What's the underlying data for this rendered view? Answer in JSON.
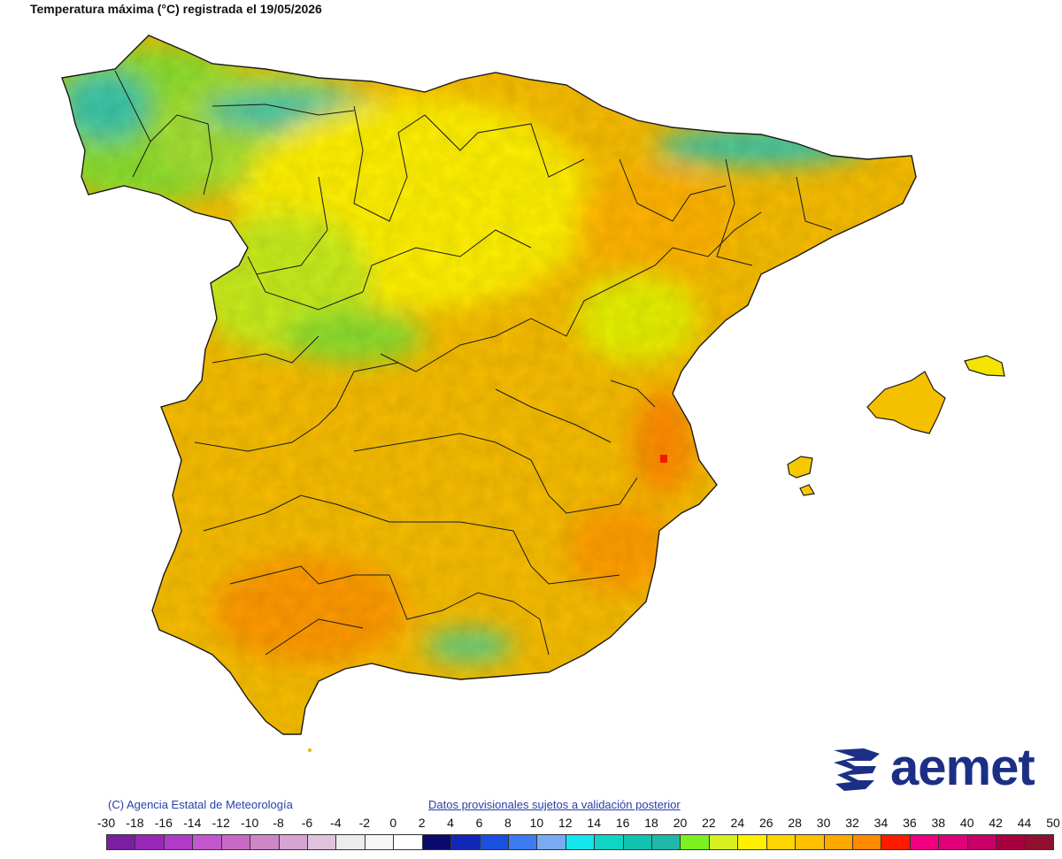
{
  "header": {
    "title": "Temperatura máxima (°C) registrada el 19/05/2026"
  },
  "footer": {
    "copyright": "(C) Agencia Estatal de Meteorología",
    "disclaimer": "Datos provisionales sujetos a validación posterior",
    "logo_text": "aemet"
  },
  "legend": {
    "ticks": [
      "-30",
      "-18",
      "-16",
      "-14",
      "-12",
      "-10",
      "-8",
      "-6",
      "-4",
      "-2",
      "0",
      "2",
      "4",
      "6",
      "8",
      "10",
      "12",
      "14",
      "16",
      "18",
      "20",
      "22",
      "24",
      "26",
      "28",
      "30",
      "32",
      "34",
      "36",
      "38",
      "40",
      "42",
      "44",
      "50"
    ],
    "colors": [
      "#7b1fa2",
      "#9b27b8",
      "#b13bc8",
      "#c257cf",
      "#c86ac4",
      "#cd86c7",
      "#d7a3d2",
      "#e0c4de",
      "#ececec",
      "#f7f7f7",
      "#ffffff",
      "#0a0a6e",
      "#1228b4",
      "#1a4fe0",
      "#3d7bf0",
      "#7aaaf2",
      "#14e6f0",
      "#10d4c4",
      "#12c2b0",
      "#20b8a8",
      "#7cf020",
      "#d8f020",
      "#fff000",
      "#ffd400",
      "#ffc000",
      "#ffa800",
      "#ff8a00",
      "#ff1a00",
      "#f00080",
      "#e0007a",
      "#c80068",
      "#a8003e",
      "#901030"
    ]
  },
  "map": {
    "land_fill_base": "#f6c000",
    "border_color": "#1a1a1a"
  }
}
